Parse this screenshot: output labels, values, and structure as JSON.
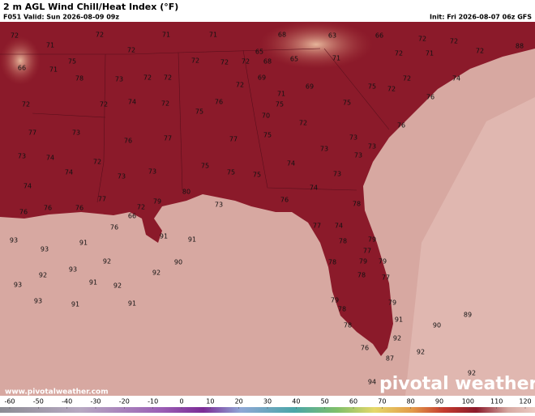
{
  "header": {
    "title": "2 m AGL Wind Chill/Heat Index (°F)",
    "valid": "F051 Valid: Sun 2026-08-09 09z",
    "init": "Init: Fri 2026-08-07 06z GFS"
  },
  "map": {
    "labels": [
      72,
      71,
      75,
      66,
      71,
      78,
      72,
      71,
      71,
      72,
      72,
      72,
      72,
      65,
      68,
      68,
      65,
      63,
      71,
      66,
      72,
      72,
      71,
      72,
      72,
      88,
      74,
      73,
      72,
      72,
      72,
      69,
      71,
      69,
      75,
      72,
      72,
      76,
      72,
      72,
      74,
      72,
      76,
      75,
      75,
      75,
      70,
      72,
      76,
      77,
      73,
      76,
      77,
      77,
      75,
      73,
      73,
      73,
      73,
      73,
      74,
      72,
      74,
      73,
      73,
      75,
      75,
      75,
      74,
      73,
      74,
      76,
      74,
      77,
      79,
      72,
      80,
      73,
      76,
      76,
      76,
      66,
      76,
      78,
      77,
      74,
      78,
      79,
      91,
      91,
      93,
      91,
      93,
      77,
      78,
      79,
      79,
      92,
      90,
      93,
      92,
      92,
      91,
      92,
      93,
      78,
      77,
      79,
      93,
      91,
      91,
      79,
      78,
      89,
      91,
      90,
      78,
      92,
      76,
      92,
      87,
      92,
      94
    ]
  },
  "colorbar": {
    "ticks": [
      -60,
      -50,
      -40,
      -30,
      -20,
      -10,
      0,
      10,
      20,
      30,
      40,
      50,
      60,
      70,
      80,
      90,
      100,
      110,
      120
    ]
  },
  "footer": {
    "url": "www.pivotalweather.com",
    "brand": "pivotal weather"
  }
}
